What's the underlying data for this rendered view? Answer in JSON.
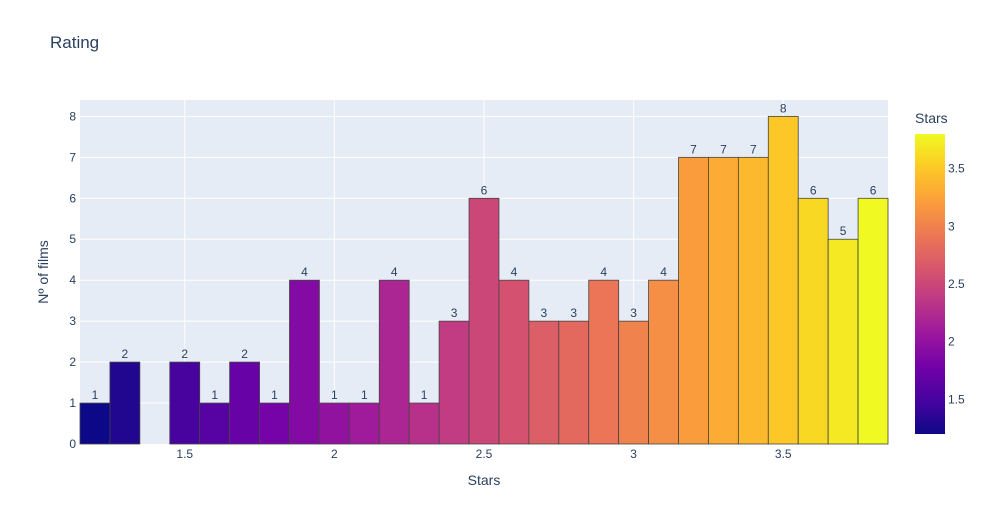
{
  "chart_data": {
    "type": "bar",
    "title": "Rating",
    "xlabel": "Stars",
    "ylabel": "Nº of films",
    "x": [
      1.2,
      1.3,
      1.4,
      1.5,
      1.6,
      1.7,
      1.8,
      1.9,
      2.0,
      2.1,
      2.2,
      2.3,
      2.4,
      2.5,
      2.6,
      2.7,
      2.8,
      2.9,
      3.0,
      3.1,
      3.2,
      3.3,
      3.4,
      3.5,
      3.6,
      3.7,
      3.8
    ],
    "values": [
      1,
      2,
      null,
      2,
      1,
      2,
      1,
      4,
      1,
      1,
      4,
      1,
      3,
      6,
      4,
      3,
      3,
      4,
      3,
      4,
      7,
      7,
      7,
      8,
      6,
      5,
      6
    ],
    "xlim": [
      1.15,
      3.85
    ],
    "ylim": [
      0,
      8.4
    ],
    "x_ticks": [
      1.5,
      2,
      2.5,
      3,
      3.5
    ],
    "x_tick_labels": [
      "1.5",
      "2",
      "2.5",
      "3",
      "3.5"
    ],
    "y_ticks": [
      0,
      1,
      2,
      3,
      4,
      5,
      6,
      7,
      8
    ],
    "y_tick_labels": [
      "0",
      "1",
      "2",
      "3",
      "4",
      "5",
      "6",
      "7",
      "8"
    ],
    "grid": true,
    "colorscale": "plasma",
    "colorbar": {
      "title": "Stars",
      "range": [
        1.2,
        3.8
      ],
      "ticks": [
        1.5,
        2,
        2.5,
        3,
        3.5
      ],
      "tick_labels": [
        "1.5",
        "2",
        "2.5",
        "3",
        "3.5"
      ]
    },
    "plot_bg": "#e5ecf6",
    "bar_outline": "#444444"
  }
}
